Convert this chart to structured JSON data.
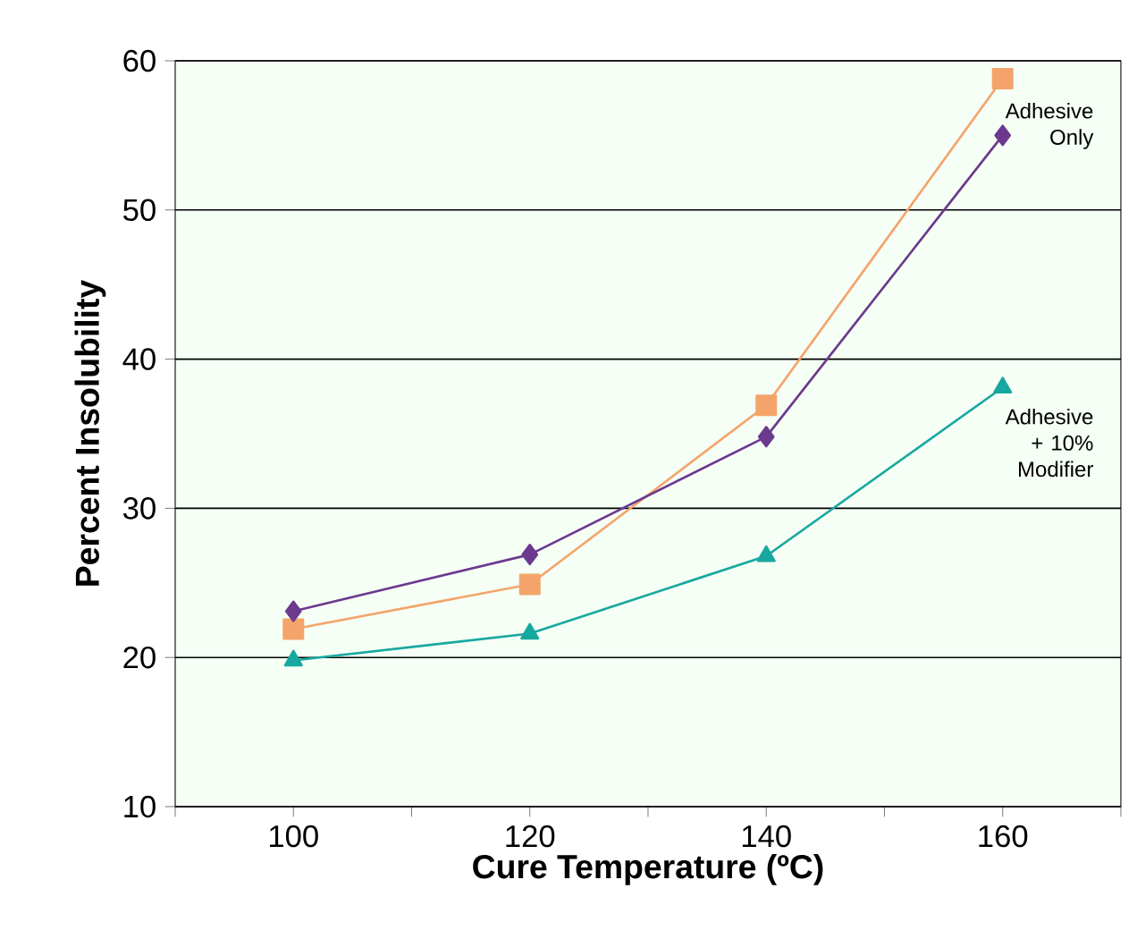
{
  "chart_data": {
    "type": "line",
    "xlabel": "Cure Temperature (ºC)",
    "ylabel": "Percent Insolubility",
    "x": [
      100,
      120,
      140,
      160
    ],
    "series": [
      {
        "color": "#f4a46a",
        "marker": "square",
        "values": [
          21.9,
          24.9,
          36.9,
          58.8
        ]
      },
      {
        "color": "#6b3a8e",
        "marker": "diamond",
        "values": [
          23.1,
          26.9,
          34.8,
          55
        ]
      },
      {
        "color": "#17a8a0",
        "marker": "triangle",
        "values": [
          19.8,
          21.6,
          26.8,
          38.1
        ]
      }
    ],
    "xlim": [
      90,
      170
    ],
    "xticks": [
      {
        "value": 90,
        "label": null
      },
      100,
      {
        "value": 110,
        "label": null
      },
      120,
      {
        "value": 130,
        "label": null
      },
      140,
      {
        "value": 150,
        "label": null
      },
      160,
      {
        "value": 170,
        "label": null
      }
    ],
    "ylim": [
      10,
      60
    ],
    "yticks": [
      10,
      20,
      30,
      40,
      50,
      60
    ],
    "grid": "y",
    "annotations": [
      "Adhesive Only",
      "Adhesive + 10% Modifier"
    ]
  }
}
